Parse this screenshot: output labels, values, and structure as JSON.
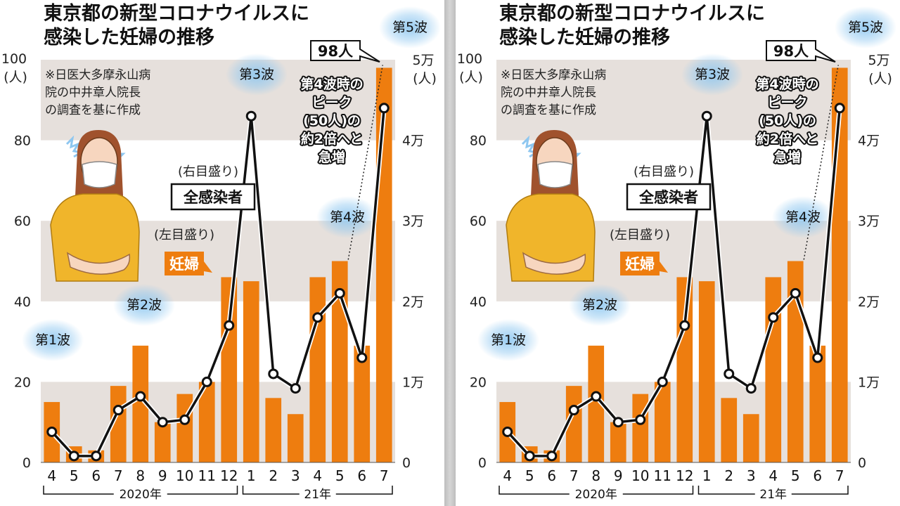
{
  "title_line1": "東京都の新型コロナウイルスに",
  "title_line2": "感染した妊婦の推移",
  "source_lines": [
    "※日医大多摩永山病",
    "院の中井章人院長",
    "の調査を基に作成"
  ],
  "left_axis_unit_lines": [
    "100",
    "(人)"
  ],
  "right_axis_unit_lines": [
    "5万",
    "(人)"
  ],
  "labels": {
    "right_scale_note": "(右目盛り)",
    "all_infected": "全感染者",
    "left_scale_note": "(左目盛り)",
    "pregnant": "妊婦",
    "peak_value": "98人",
    "annotation_lines": [
      "第4波時の",
      "ピーク",
      "(50人)の",
      "約2倍へと",
      "急増"
    ]
  },
  "waves": [
    "第1波",
    "第2波",
    "第3波",
    "第4波",
    "第5波"
  ],
  "years": [
    "2020年",
    "21年"
  ],
  "colors": {
    "bar": "#ee7d0f",
    "line": "#111111",
    "band_gray": "#e6e0dc",
    "wave_glow": "#8ec7f0"
  },
  "chart_data": {
    "type": "bar",
    "title": "東京都の新型コロナウイルスに感染した妊婦の推移",
    "categories": [
      "4",
      "5",
      "6",
      "7",
      "8",
      "9",
      "10",
      "11",
      "12",
      "1",
      "2",
      "3",
      "4",
      "5",
      "6",
      "7"
    ],
    "category_groups": [
      {
        "label": "2020年",
        "from": 0,
        "to": 8
      },
      {
        "label": "21年",
        "from": 9,
        "to": 15
      }
    ],
    "series": [
      {
        "name": "妊婦",
        "axis": "left",
        "type": "bar",
        "values": [
          15,
          4,
          3,
          19,
          29,
          10,
          17,
          20,
          46,
          45,
          16,
          12,
          46,
          50,
          29,
          98
        ]
      },
      {
        "name": "全感染者",
        "axis": "right",
        "type": "line",
        "values": [
          3800,
          800,
          800,
          6500,
          8200,
          5000,
          5300,
          10000,
          17000,
          43000,
          11000,
          9200,
          18000,
          21000,
          13000,
          44000
        ]
      }
    ],
    "y_left": {
      "ylim": [
        0,
        100
      ],
      "ticks": [
        "0",
        "20",
        "40",
        "60",
        "80",
        "100"
      ]
    },
    "y_right": {
      "ylim": [
        0,
        50000
      ],
      "ticks": [
        "0",
        "1万",
        "2万",
        "3万",
        "4万",
        "5万"
      ]
    },
    "grid": "alternating gray bands"
  }
}
